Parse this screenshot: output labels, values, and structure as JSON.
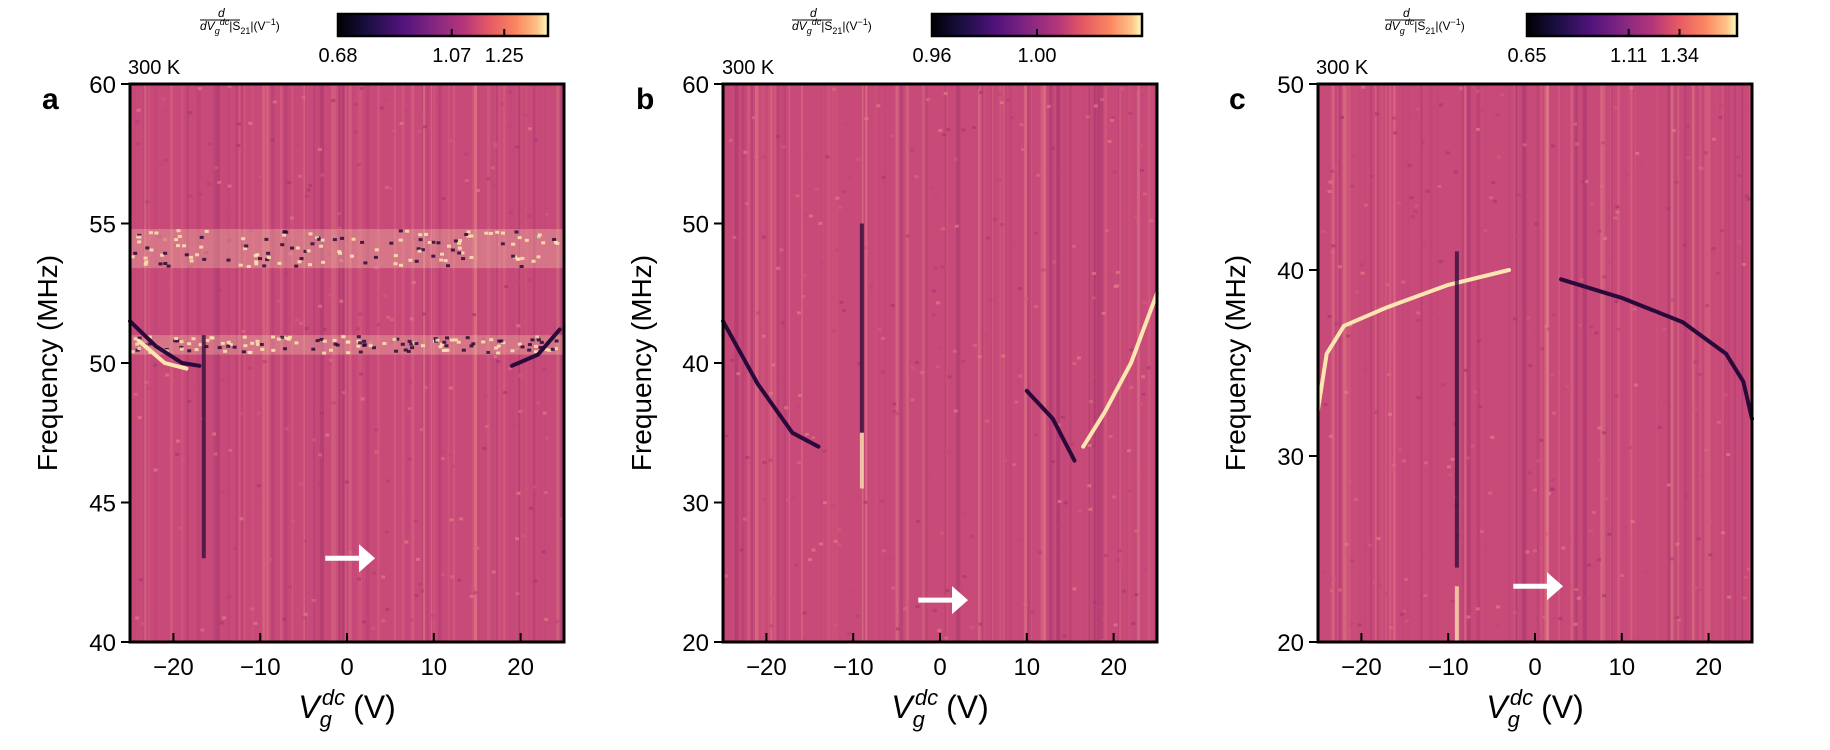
{
  "colors": {
    "heatmap_base": "#c84a78",
    "noise": [
      "#b63f74",
      "#d25a7c",
      "#c04679",
      "#da6a82",
      "#a9386f",
      "#e07c86"
    ],
    "bright": "#fbe6b0",
    "dark": "#2a0a3a",
    "arrow": "#ffffff",
    "frame": "#000000"
  },
  "chart_data": [
    {
      "type": "heatmap",
      "panel_label": "a",
      "temperature": "300 K",
      "colorbar": {
        "label": "d/dV_g^dc |S21| (V^-1)",
        "label_parts": {
          "d": "d",
          "dv": "dV",
          "g": "g",
          "dc": "dc",
          "s": "|S",
          "sub": "21",
          "unit": "|(V",
          "exp": "−1",
          "close": ")"
        },
        "ticks": [
          "0.68",
          "1.07",
          "1.25"
        ],
        "tick_values": [
          0.68,
          1.07,
          1.25
        ],
        "range": [
          0.68,
          1.4
        ],
        "colormap": "magma"
      },
      "xlabel": {
        "v": "V",
        "sub": "g",
        "sup": "dc",
        "unit": "(V)"
      },
      "ylabel": "Frequency (MHz)",
      "xlim": [
        -25,
        25
      ],
      "ylim": [
        40,
        60
      ],
      "xticks": [
        -20,
        -10,
        0,
        10,
        20
      ],
      "xtick_labels": [
        "−20",
        "−10",
        "0",
        "10",
        "20"
      ],
      "yticks": [
        40,
        45,
        50,
        55,
        60
      ],
      "ytick_labels": [
        "40",
        "45",
        "50",
        "55",
        "60"
      ],
      "features": [
        {
          "kind": "bright_band",
          "y_from": 53.4,
          "y_to": 54.8
        },
        {
          "kind": "bright_band",
          "y_from": 50.3,
          "y_to": 51.0
        },
        {
          "kind": "dark_curve",
          "points": [
            [
              -25,
              51.5
            ],
            [
              -22,
              50.6
            ],
            [
              -19,
              50.0
            ],
            [
              -17,
              49.9
            ]
          ]
        },
        {
          "kind": "bright_curve",
          "points": [
            [
              -24,
              50.8
            ],
            [
              -21,
              50.0
            ],
            [
              -18.5,
              49.8
            ]
          ]
        },
        {
          "kind": "dark_curve",
          "points": [
            [
              19,
              49.9
            ],
            [
              22,
              50.3
            ],
            [
              24.5,
              51.2
            ]
          ]
        },
        {
          "kind": "dark_line",
          "x": -16.5,
          "y_from": 43,
          "y_to": 51
        },
        {
          "kind": "arrow",
          "x_from": -2.5,
          "x_to": 3,
          "y": 43
        }
      ]
    },
    {
      "type": "heatmap",
      "panel_label": "b",
      "temperature": "300 K",
      "colorbar": {
        "label": "d/dV_g^dc |S21| (V^-1)",
        "label_parts": {
          "d": "d",
          "dv": "dV",
          "g": "g",
          "dc": "dc",
          "s": "|S",
          "sub": "21",
          "unit": "|(V",
          "exp": "−1",
          "close": ")"
        },
        "ticks": [
          "0.96",
          "1.00"
        ],
        "tick_values": [
          0.96,
          1.0
        ],
        "range": [
          0.96,
          1.04
        ],
        "colormap": "magma"
      },
      "xlabel": {
        "v": "V",
        "sub": "g",
        "sup": "dc",
        "unit": "(V)"
      },
      "ylabel": "Frequency (MHz)",
      "xlim": [
        -25,
        25
      ],
      "ylim": [
        20,
        60
      ],
      "xticks": [
        -20,
        -10,
        0,
        10,
        20
      ],
      "xtick_labels": [
        "−20",
        "−10",
        "0",
        "10",
        "20"
      ],
      "yticks": [
        20,
        30,
        40,
        50,
        60
      ],
      "ytick_labels": [
        "20",
        "30",
        "40",
        "50",
        "60"
      ],
      "features": [
        {
          "kind": "dark_curve",
          "points": [
            [
              -25,
              43
            ],
            [
              -21,
              38.5
            ],
            [
              -17,
              35
            ],
            [
              -14,
              34
            ]
          ]
        },
        {
          "kind": "dark_curve",
          "points": [
            [
              10,
              38
            ],
            [
              13,
              36
            ],
            [
              15.5,
              33
            ]
          ]
        },
        {
          "kind": "bright_curve",
          "points": [
            [
              16.5,
              34
            ],
            [
              19,
              36.5
            ],
            [
              22,
              40
            ],
            [
              25,
              45
            ]
          ]
        },
        {
          "kind": "dark_line",
          "x": -9,
          "y_from": 35,
          "y_to": 50
        },
        {
          "kind": "bright_line",
          "x": -9,
          "y_from": 31,
          "y_to": 35
        },
        {
          "kind": "arrow",
          "x_from": -2.5,
          "x_to": 3,
          "y": 23
        }
      ]
    },
    {
      "type": "heatmap",
      "panel_label": "c",
      "temperature": "300 K",
      "colorbar": {
        "label": "d/dV_g^dc |S21| (V^-1)",
        "label_parts": {
          "d": "d",
          "dv": "dV",
          "g": "g",
          "dc": "dc",
          "s": "|S",
          "sub": "21",
          "unit": "|(V",
          "exp": "−1",
          "close": ")"
        },
        "ticks": [
          "0.65",
          "1.11",
          "1.34"
        ],
        "tick_values": [
          0.65,
          1.11,
          1.34
        ],
        "range": [
          0.65,
          1.6
        ],
        "colormap": "magma"
      },
      "xlabel": {
        "v": "V",
        "sub": "g",
        "sup": "dc",
        "unit": "(V)"
      },
      "ylabel": "Frequency (MHz)",
      "xlim": [
        -25,
        25
      ],
      "ylim": [
        20,
        50
      ],
      "xticks": [
        -20,
        -10,
        0,
        10,
        20
      ],
      "xtick_labels": [
        "−20",
        "−10",
        "0",
        "10",
        "20"
      ],
      "yticks": [
        20,
        30,
        40,
        50
      ],
      "ytick_labels": [
        "20",
        "30",
        "40",
        "50"
      ],
      "features": [
        {
          "kind": "bright_curve",
          "points": [
            [
              -25,
              32.5
            ],
            [
              -24,
              35.5
            ],
            [
              -22,
              37
            ],
            [
              -17,
              38
            ],
            [
              -10,
              39.2
            ],
            [
              -3,
              40
            ]
          ]
        },
        {
          "kind": "dark_curve",
          "points": [
            [
              3,
              39.5
            ],
            [
              10,
              38.5
            ],
            [
              17,
              37.2
            ],
            [
              22,
              35.5
            ],
            [
              24,
              34
            ],
            [
              25,
              32
            ]
          ]
        },
        {
          "kind": "dark_line",
          "x": -9,
          "y_from": 24,
          "y_to": 41
        },
        {
          "kind": "bright_line",
          "x": -9,
          "y_from": 20,
          "y_to": 23
        },
        {
          "kind": "arrow",
          "x_from": -2.5,
          "x_to": 3,
          "y": 23
        }
      ]
    }
  ]
}
